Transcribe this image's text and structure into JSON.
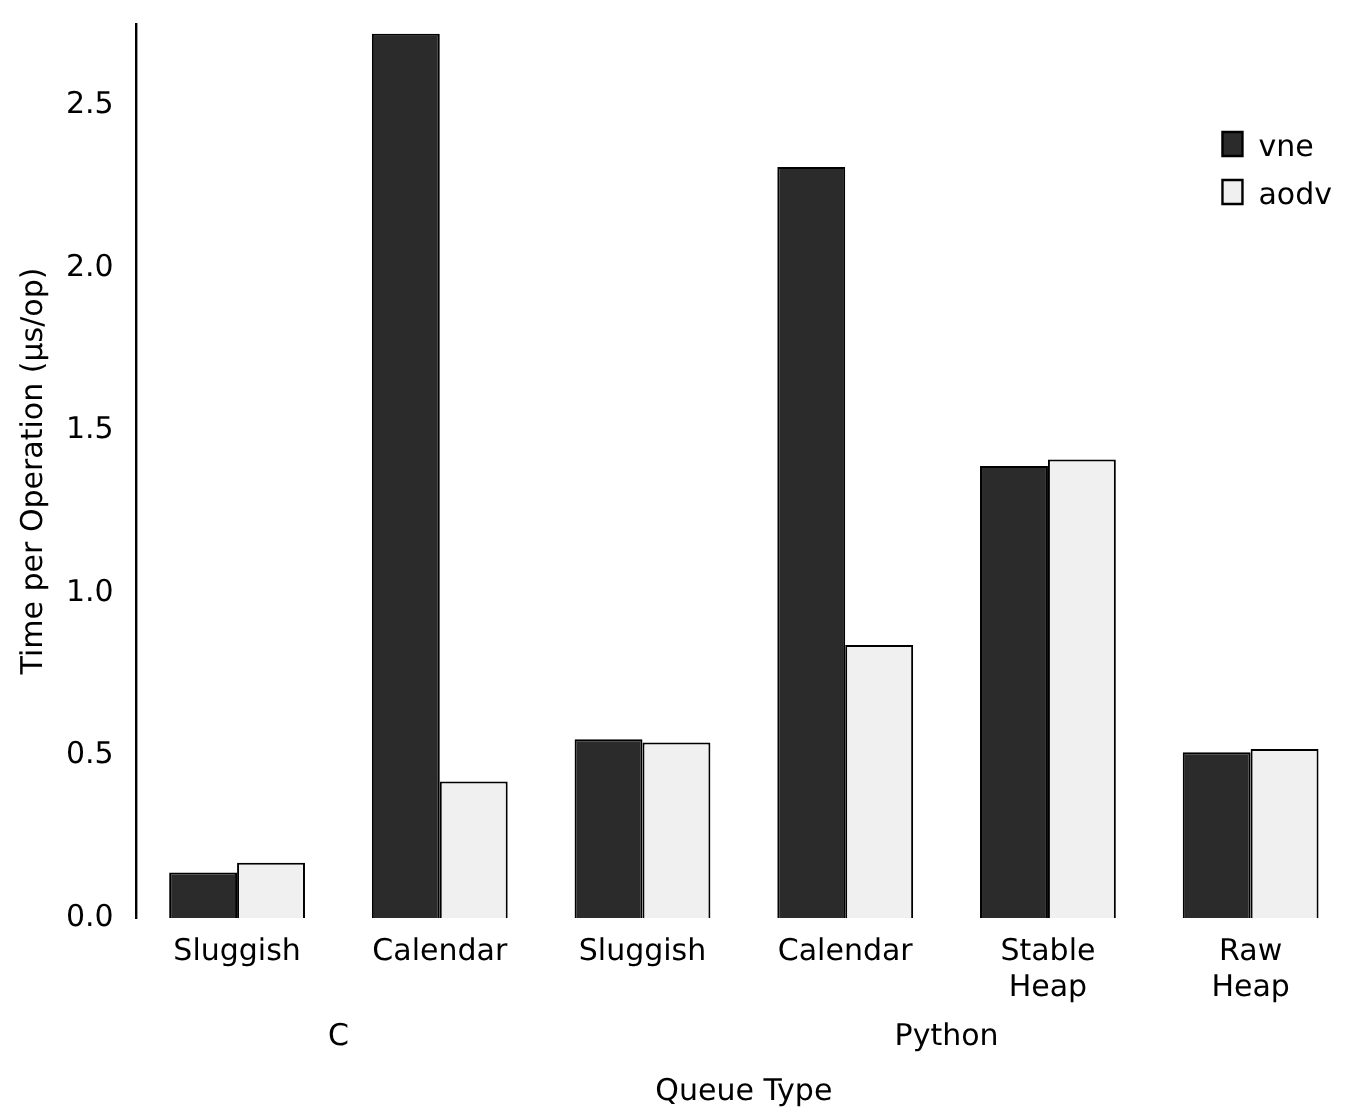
{
  "chart_data": {
    "type": "bar",
    "xlabel": "Queue Type",
    "ylabel": "Time per Operation (µs/op)",
    "categories": [
      "Sluggish",
      "Calendar",
      "Sluggish",
      "Calendar",
      "Stable Heap",
      "Raw Heap"
    ],
    "series": [
      {
        "name": "vne",
        "color": "#2b2b2b",
        "values": [
          0.14,
          2.72,
          0.55,
          2.31,
          1.39,
          0.51
        ]
      },
      {
        "name": "aodv",
        "color": "#f0f0f0",
        "values": [
          0.17,
          0.42,
          0.54,
          0.84,
          1.41,
          0.52
        ]
      }
    ],
    "annotations": [
      "C",
      "Python"
    ],
    "ylim": [
      0,
      2.75
    ],
    "yticks": [
      {
        "value": 0,
        "label": "0.0"
      },
      0.5,
      {
        "value": 1,
        "label": "1.0"
      },
      1.5,
      {
        "value": 2,
        "label": "2.0"
      },
      2.5
    ],
    "grid": false,
    "legend": "top right"
  }
}
